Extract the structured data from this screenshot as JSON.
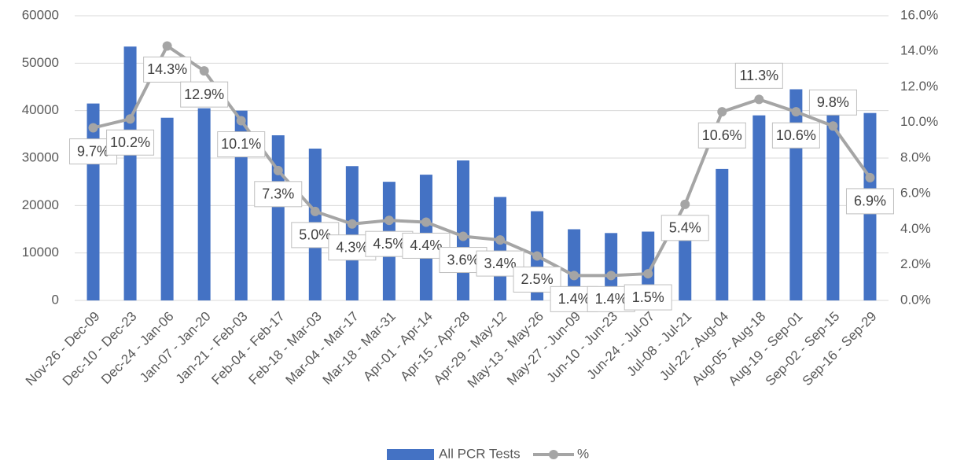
{
  "chart_data": {
    "type": "bar-line",
    "categories": [
      "Nov-26 - Dec-09",
      "Dec-10 - Dec-23",
      "Dec-24 - Jan-06",
      "Jan-07 - Jan-20",
      "Jan-21 - Feb-03",
      "Feb-04 - Feb-17",
      "Feb-18 - Mar-03",
      "Mar-04 - Mar-17",
      "Mar-18 - Mar-31",
      "Apr-01 - Apr-14",
      "Apr-15 - Apr-28",
      "Apr-29 - May-12",
      "May-13 - May-26",
      "May-27 - Jun-09",
      "Jun-10 - Jun-23",
      "Jun-24 - Jul-07",
      "Jul-08 - Jul-21",
      "Jul-22 - Aug-04",
      "Aug-05 - Aug-18",
      "Aug-19 - Sep-01",
      "Sep-02 - Sep-15",
      "Sep-16 - Sep-29"
    ],
    "series": [
      {
        "name": "All PCR Tests",
        "type": "bar",
        "color": "#4472c4",
        "values": [
          41500,
          53500,
          38500,
          40500,
          40000,
          34800,
          32000,
          28300,
          25000,
          26500,
          29500,
          21800,
          18800,
          15000,
          14200,
          14500,
          13000,
          27700,
          39000,
          44500,
          40800,
          39500
        ]
      },
      {
        "name": "%",
        "type": "line",
        "color": "#a5a5a5",
        "axis": "y2",
        "values": [
          9.7,
          10.2,
          14.3,
          12.9,
          10.1,
          7.3,
          5.0,
          4.3,
          4.5,
          4.4,
          3.6,
          3.4,
          2.5,
          1.4,
          1.4,
          1.5,
          5.4,
          10.6,
          11.3,
          10.6,
          9.8,
          6.9
        ],
        "value_labels": [
          "9.7%",
          "10.2%",
          "14.3%",
          "12.9%",
          "10.1%",
          "7.3%",
          "5.0%",
          "4.3%",
          "4.5%",
          "4.4%",
          "3.6%",
          "3.4%",
          "2.5%",
          "1.4%",
          "1.4%",
          "1.5%",
          "5.4%",
          "10.6%",
          "11.3%",
          "10.6%",
          "9.8%",
          "6.9%"
        ]
      }
    ],
    "ylim": [
      0,
      60000
    ],
    "yticks": [
      0,
      10000,
      20000,
      30000,
      40000,
      50000,
      60000
    ],
    "y2lim": [
      0,
      16
    ],
    "y2ticks": [
      {
        "value": 0,
        "label": "0.0%"
      },
      {
        "value": 2,
        "label": "2.0%"
      },
      {
        "value": 4,
        "label": "4.0%"
      },
      {
        "value": 6,
        "label": "6.0%"
      },
      {
        "value": 8,
        "label": "8.0%"
      },
      {
        "value": 10,
        "label": "10.0%"
      },
      {
        "value": 12,
        "label": "12.0%"
      },
      {
        "value": 14,
        "label": "14.0%"
      },
      {
        "value": 16,
        "label": "16.0%"
      }
    ],
    "grid": true,
    "legend": "bottom"
  }
}
